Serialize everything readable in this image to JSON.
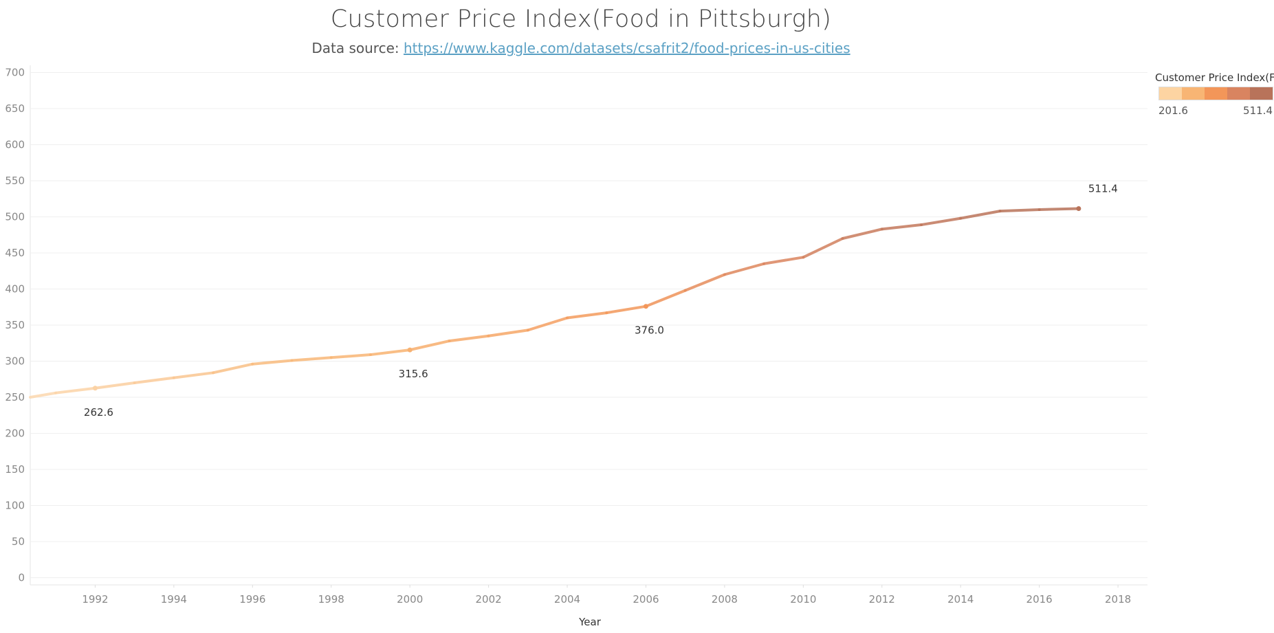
{
  "header": {
    "title": "Customer Price Index(Food in Pittsburgh)",
    "source_prefix": "Data source: ",
    "source_link": "https://www.kaggle.com/datasets/csafrit2/food-prices-in-us-cities"
  },
  "legend": {
    "title": "Customer Price Index(F..",
    "min_label": "201.6",
    "max_label": "511.4",
    "swatches": [
      "#fdd4a2",
      "#f8b574",
      "#f39659",
      "#d98460",
      "#b8735a"
    ]
  },
  "chart_data": {
    "type": "line",
    "title": "Customer Price Index(Food in Pittsburgh)",
    "xlabel": "Year",
    "ylabel": "",
    "xlim": [
      1990.35,
      2018.75
    ],
    "ylim": [
      -10,
      710
    ],
    "x_ticks": [
      1992,
      1994,
      1996,
      1998,
      2000,
      2002,
      2004,
      2006,
      2008,
      2010,
      2012,
      2014,
      2016,
      2018
    ],
    "y_ticks": [
      0,
      50,
      100,
      150,
      200,
      250,
      300,
      350,
      400,
      450,
      500,
      550,
      600,
      650,
      700
    ],
    "grid": true,
    "color_scale": {
      "min": 201.6,
      "max": 511.4,
      "colors": [
        "#fde0bd",
        "#f8b574",
        "#f39659",
        "#d98460",
        "#b8735a"
      ]
    },
    "x": [
      1990.35,
      1991,
      1992,
      1993,
      1994,
      1995,
      1996,
      1997,
      1998,
      1999,
      2000,
      2001,
      2002,
      2003,
      2004,
      2005,
      2006,
      2007,
      2008,
      2009,
      2010,
      2011,
      2012,
      2013,
      2014,
      2015,
      2016,
      2017
    ],
    "y": [
      250,
      256,
      262.6,
      270,
      277,
      284,
      296,
      301,
      305,
      309,
      315.6,
      328,
      335,
      343,
      360,
      367,
      376.0,
      398,
      420,
      435,
      444,
      470,
      483,
      489,
      498,
      508,
      510,
      511.4
    ],
    "markers": [
      {
        "x": 1992,
        "y": 262.6,
        "label": "262.6",
        "position": "below"
      },
      {
        "x": 2000,
        "y": 315.6,
        "label": "315.6",
        "position": "below"
      },
      {
        "x": 2006,
        "y": 376.0,
        "label": "376.0",
        "position": "below"
      },
      {
        "x": 2017,
        "y": 511.4,
        "label": "511.4",
        "position": "above"
      }
    ]
  }
}
